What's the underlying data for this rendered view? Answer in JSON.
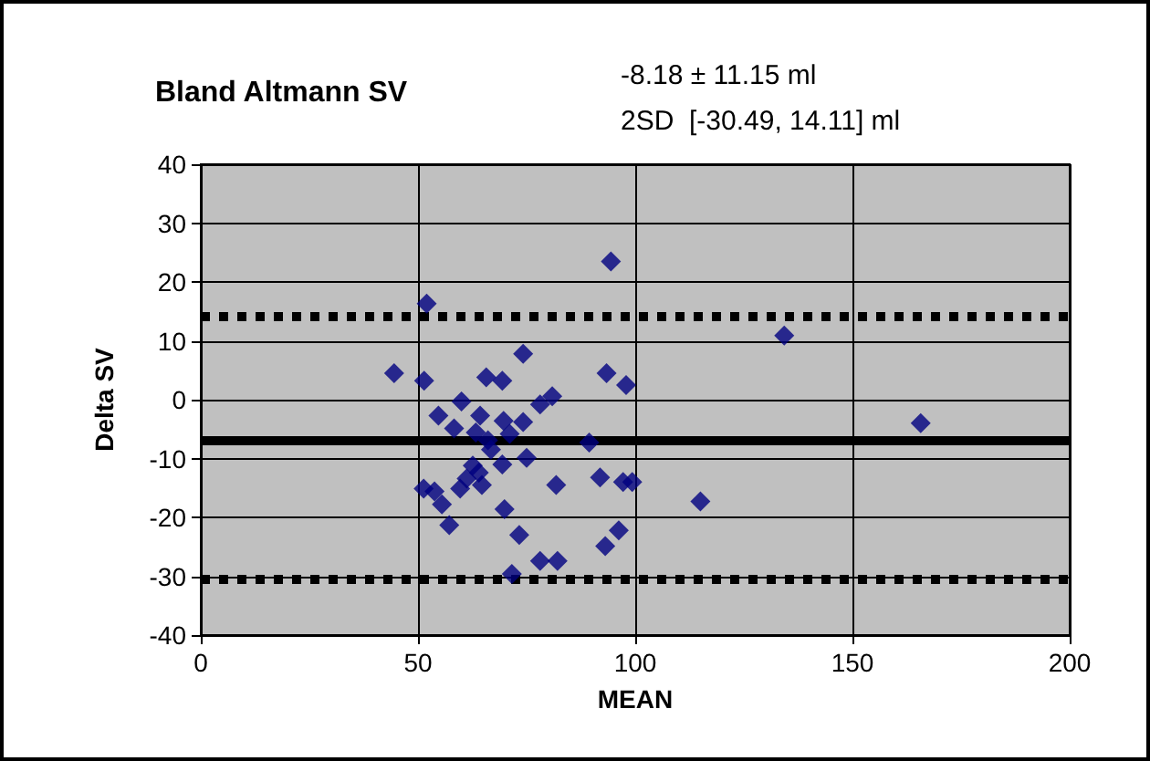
{
  "chart_data": {
    "type": "scatter",
    "title": "Bland Altmann SV",
    "xlabel": "MEAN",
    "ylabel": "Delta SV",
    "annotations": [
      "-8.18 ± 11.15 ml",
      "2SD  [-30.49, 14.11] ml"
    ],
    "x": [
      94.4,
      52,
      44.5,
      51.4,
      74.2,
      65.7,
      69.4,
      93.4,
      97.9,
      60,
      54.7,
      78.1,
      80.9,
      64.3,
      58.3,
      69.7,
      74.2,
      89.4,
      75,
      66.8,
      69.4,
      64,
      61.2,
      59.7,
      64.7,
      51.3,
      53.8,
      55.5,
      57.2,
      81.8,
      91.9,
      97.2,
      99.3,
      69.9,
      73.3,
      96.2,
      93.1,
      78.1,
      82.1,
      71.6,
      115,
      63.3,
      71.1,
      66.1,
      62.6,
      134.3,
      165.7
    ],
    "series": [
      {
        "color": "#000080",
        "values": [
          23.5,
          16.3,
          4.5,
          3.2,
          7.8,
          3.8,
          3.2,
          4.5,
          2.5,
          -0.3,
          -2.7,
          -0.8,
          0.6,
          -2.7,
          -4.9,
          -3.6,
          -3.8,
          -7.3,
          -9.9,
          -8.5,
          -11,
          -12.4,
          -13.4,
          -15.1,
          -14.5,
          -15.1,
          -15.6,
          -17.8,
          -21.3,
          -14.5,
          -13.2,
          -14,
          -14,
          -18.6,
          -23,
          -22.2,
          -24.9,
          -27.4,
          -27.4,
          -29.6,
          -17.3,
          -5.6,
          -5.8,
          -6.9,
          -11.2,
          10.9,
          -4
        ]
      }
    ],
    "xlim": [
      0,
      200
    ],
    "xticks": [
      0,
      50,
      100,
      150,
      200
    ],
    "ylim": [
      -40,
      40
    ],
    "yticks": [
      -40,
      -30,
      -20,
      -10,
      0,
      10,
      20,
      30,
      40
    ],
    "grid": true,
    "marker": "diamond",
    "ref_lines": [
      {
        "axis": "y",
        "value": -7,
        "color": "#000000",
        "line_style": "solid"
      },
      {
        "axis": "y",
        "value": 14.11,
        "color": "#000000",
        "line_style": "dotted"
      },
      {
        "axis": "y",
        "value": -30.49,
        "color": "#000000",
        "line_style": "dotted"
      }
    ]
  }
}
